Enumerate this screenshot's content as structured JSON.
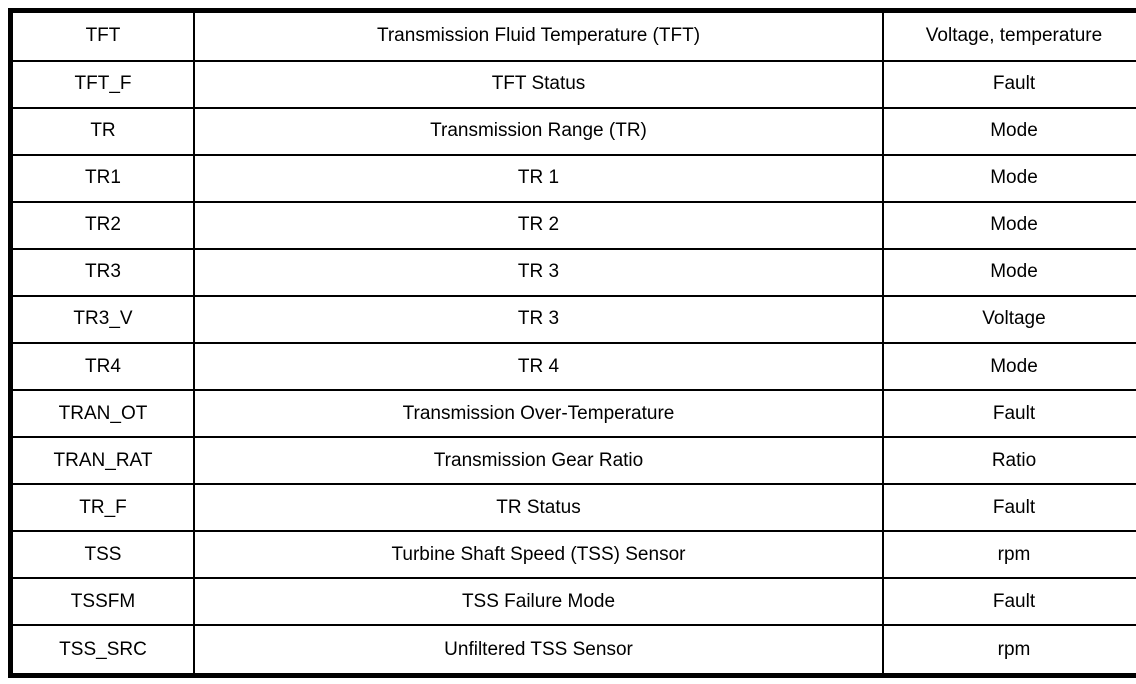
{
  "colors": {
    "background": "#ffffff",
    "border": "#000000",
    "text": "#000000"
  },
  "table": {
    "rows": [
      {
        "signal": "TFT",
        "description": "Transmission Fluid Temperature (TFT)",
        "units": "Voltage, temperature"
      },
      {
        "signal": "TFT_F",
        "description": "TFT Status",
        "units": "Fault"
      },
      {
        "signal": "TR",
        "description": "Transmission Range (TR)",
        "units": "Mode"
      },
      {
        "signal": "TR1",
        "description": "TR 1",
        "units": "Mode"
      },
      {
        "signal": "TR2",
        "description": "TR 2",
        "units": "Mode"
      },
      {
        "signal": "TR3",
        "description": "TR 3",
        "units": "Mode"
      },
      {
        "signal": "TR3_V",
        "description": "TR 3",
        "units": "Voltage"
      },
      {
        "signal": "TR4",
        "description": "TR 4",
        "units": "Mode"
      },
      {
        "signal": "TRAN_OT",
        "description": "Transmission Over-Temperature",
        "units": "Fault"
      },
      {
        "signal": "TRAN_RAT",
        "description": "Transmission Gear Ratio",
        "units": "Ratio"
      },
      {
        "signal": "TR_F",
        "description": "TR Status",
        "units": "Fault"
      },
      {
        "signal": "TSS",
        "description": "Turbine Shaft Speed (TSS) Sensor",
        "units": "rpm"
      },
      {
        "signal": "TSSFM",
        "description": "TSS Failure Mode",
        "units": "Fault"
      },
      {
        "signal": "TSS_SRC",
        "description": "Unfiltered TSS Sensor",
        "units": "rpm"
      }
    ]
  }
}
